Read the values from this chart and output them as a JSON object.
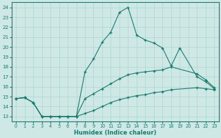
{
  "xlabel": "Humidex (Indice chaleur)",
  "background_color": "#cde8e5",
  "grid_color": "#aed4cf",
  "line_color": "#1a7a6e",
  "xlim": [
    -0.5,
    23.5
  ],
  "ylim": [
    12.5,
    24.5
  ],
  "yticks": [
    13,
    14,
    15,
    16,
    17,
    18,
    19,
    20,
    21,
    22,
    23,
    24
  ],
  "xticks": [
    0,
    1,
    2,
    3,
    4,
    5,
    6,
    7,
    8,
    9,
    10,
    11,
    12,
    13,
    14,
    15,
    16,
    17,
    18,
    19,
    20,
    21,
    22,
    23
  ],
  "curve1": {
    "x": [
      0,
      1,
      2,
      3,
      4,
      5,
      6,
      7,
      8,
      9,
      10,
      11,
      12,
      13,
      14,
      15,
      16,
      17,
      18,
      19,
      21,
      22,
      23
    ],
    "y": [
      14.8,
      14.9,
      14.4,
      13.0,
      13.0,
      13.0,
      13.0,
      13.0,
      17.5,
      18.8,
      20.5,
      21.5,
      23.5,
      24.0,
      21.2,
      20.7,
      20.4,
      19.9,
      18.1,
      19.9,
      17.0,
      16.5,
      15.8
    ]
  },
  "curve2": {
    "x": [
      0,
      1,
      2,
      3,
      4,
      5,
      6,
      7,
      8,
      9,
      10,
      11,
      12,
      13,
      14,
      15,
      16,
      17,
      18,
      21,
      22,
      23
    ],
    "y": [
      14.8,
      14.9,
      14.4,
      13.0,
      13.0,
      13.0,
      13.0,
      13.0,
      14.8,
      15.3,
      15.8,
      16.3,
      16.8,
      17.2,
      17.4,
      17.5,
      17.6,
      17.7,
      18.0,
      17.3,
      16.7,
      15.9
    ]
  },
  "curve3": {
    "x": [
      0,
      1,
      2,
      3,
      4,
      5,
      6,
      7,
      8,
      9,
      10,
      11,
      12,
      13,
      14,
      15,
      16,
      17,
      18,
      21,
      22,
      23
    ],
    "y": [
      14.8,
      14.9,
      14.4,
      13.0,
      13.0,
      13.0,
      13.0,
      13.0,
      13.3,
      13.6,
      14.0,
      14.4,
      14.7,
      14.9,
      15.1,
      15.2,
      15.4,
      15.5,
      15.7,
      15.9,
      15.8,
      15.7
    ]
  }
}
